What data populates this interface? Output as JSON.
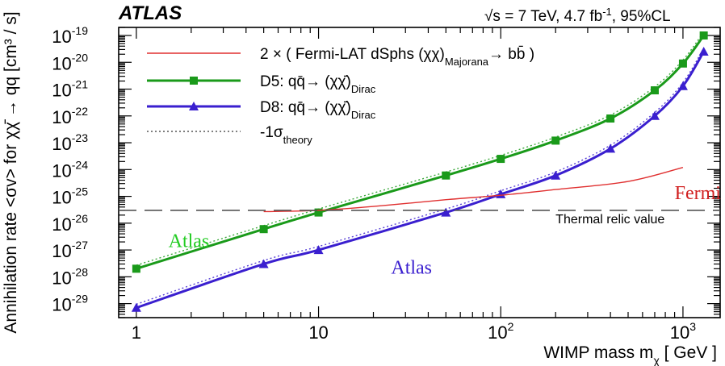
{
  "chart_data": {
    "type": "line",
    "x_scale": "log",
    "y_scale": "log",
    "xlim": [
      0.8,
      1600
    ],
    "ylim": [
      3e-30,
      2e-19
    ],
    "x_ticks": [
      {
        "value": 1,
        "base": "1",
        "exp": ""
      },
      {
        "value": 10,
        "base": "10",
        "exp": ""
      },
      {
        "value": 100,
        "base": "10",
        "exp": "2"
      },
      {
        "value": 1000,
        "base": "10",
        "exp": "3"
      }
    ],
    "y_ticks": [
      {
        "value": 1e-19,
        "base": "10",
        "exp": "-19"
      },
      {
        "value": 1e-20,
        "base": "10",
        "exp": "-20"
      },
      {
        "value": 1e-21,
        "base": "10",
        "exp": "-21"
      },
      {
        "value": 1e-22,
        "base": "10",
        "exp": "-22"
      },
      {
        "value": 1e-23,
        "base": "10",
        "exp": "-23"
      },
      {
        "value": 1e-24,
        "base": "10",
        "exp": "-24"
      },
      {
        "value": 1e-25,
        "base": "10",
        "exp": "-25"
      },
      {
        "value": 1e-26,
        "base": "10",
        "exp": "-26"
      },
      {
        "value": 1e-27,
        "base": "10",
        "exp": "-27"
      },
      {
        "value": 1e-28,
        "base": "10",
        "exp": "-28"
      },
      {
        "value": 1e-29,
        "base": "10",
        "exp": "-29"
      }
    ],
    "xlabel": {
      "main": "WIMP mass m",
      "sub": "χ",
      "unit": " [ GeV ]"
    },
    "ylabel": "Annihilation rate <σv> for χχ̄ → qq  [cm³ / s]",
    "header": {
      "logo": "ATLAS",
      "energy": "√s = 7 TeV, 4.7 fb",
      "lumi_exp": "-1",
      "cl": ", 95%CL"
    },
    "legend": [
      {
        "series": "fermi",
        "pre": "2 × ( Fermi-LAT dSphs (χχ)",
        "sub": "Majorana",
        "post": "→ bb̄ )"
      },
      {
        "series": "d5",
        "pre": "D5: qq̄→ (χχ̄)",
        "sub": "Dirac",
        "post": ""
      },
      {
        "series": "d8",
        "pre": "D8: qq̄→ (χχ̄)",
        "sub": "Dirac",
        "post": ""
      },
      {
        "series": "theory",
        "pre": "-1σ",
        "sub": "theory",
        "post": ""
      }
    ],
    "series": [
      {
        "id": "d5",
        "name": "D5: qq̄→ (χχ̄)Dirac",
        "color": "#1a9a1a",
        "marker": "square",
        "x": [
          1,
          5,
          10,
          50,
          100,
          200,
          400,
          700,
          1000,
          1300
        ],
        "y": [
          2e-28,
          6e-27,
          2.5e-26,
          6e-25,
          2.5e-24,
          1.2e-23,
          8e-23,
          9e-22,
          9e-21,
          1e-19
        ]
      },
      {
        "id": "d8",
        "name": "D8: qq̄→ (χχ̄)Dirac",
        "color": "#3a1fcf",
        "marker": "triangle",
        "x": [
          1,
          5,
          10,
          50,
          100,
          200,
          400,
          700,
          1000,
          1300
        ],
        "y": [
          7e-30,
          3e-28,
          1e-27,
          2.5e-26,
          1.2e-25,
          6e-25,
          6e-24,
          1e-22,
          1.3e-21,
          2.5e-20
        ]
      },
      {
        "id": "fermi",
        "name": "2 × ( Fermi-LAT dSphs (χχ)Majorana→ bb̄ )",
        "color": "#e03030",
        "marker": "none",
        "x": [
          5,
          10,
          20,
          50,
          100,
          200,
          500,
          1000
        ],
        "y": [
          2.7e-26,
          3e-26,
          4.2e-26,
          7.5e-26,
          1.1e-25,
          1.8e-25,
          3.6e-25,
          1.2e-24
        ]
      },
      {
        "id": "thermal",
        "name": "Thermal relic value",
        "color": "#555555",
        "marker": "none",
        "dashed": true,
        "x": [
          0.8,
          1600
        ],
        "y": [
          3e-26,
          3e-26
        ]
      }
    ],
    "annotations": [
      {
        "text": "Fermi",
        "color": "#d11f1f",
        "x": 900,
        "y": 8e-26
      },
      {
        "text": "Atlas",
        "color": "#22cc22",
        "x": 1.5,
        "y": 1.3e-27
      },
      {
        "text": "Atlas",
        "color": "#3a1fcf",
        "x": 25,
        "y": 1.3e-28
      },
      {
        "text": "Thermal relic value",
        "color": "#000000",
        "x": 200,
        "y": 1e-26
      }
    ],
    "grid": false
  }
}
